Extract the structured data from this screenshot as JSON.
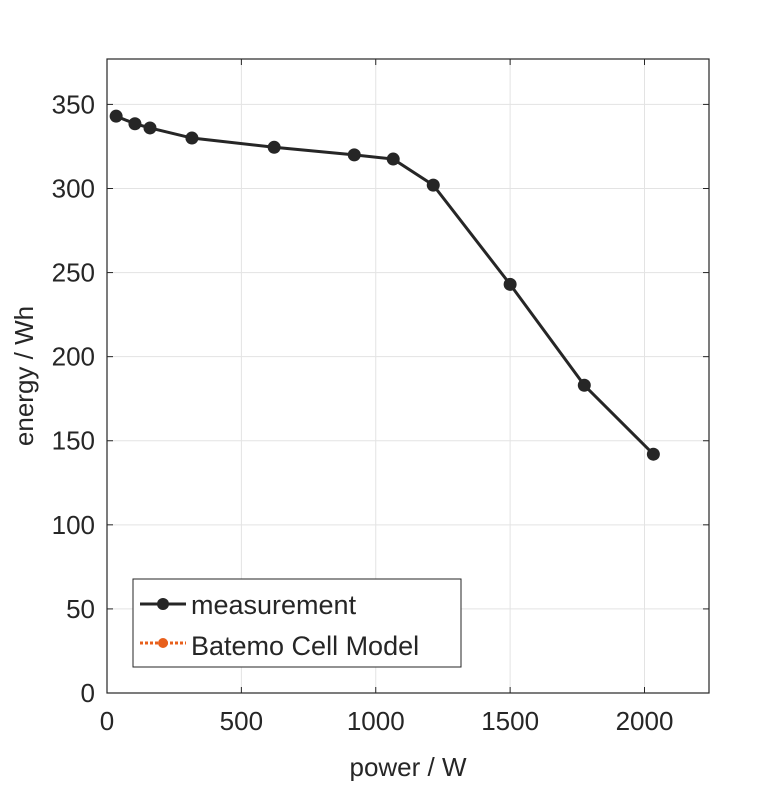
{
  "chart_data": {
    "type": "line",
    "title": "",
    "xlabel": "power / W",
    "ylabel": "energy / Wh",
    "xlim": [
      0,
      2240
    ],
    "ylim": [
      0,
      377
    ],
    "xticks": [
      0,
      500,
      1000,
      1500,
      2000
    ],
    "yticks": [
      0,
      50,
      100,
      150,
      200,
      250,
      300,
      350
    ],
    "xtick_labels": [
      "0",
      "500",
      "1000",
      "1500",
      "2000"
    ],
    "ytick_labels": [
      "0",
      "50",
      "100",
      "150",
      "200",
      "250",
      "300",
      "350"
    ],
    "grid": true,
    "legend_position": "bottom-left",
    "series": [
      {
        "name": "measurement",
        "color": "#262626",
        "line_style": "solid",
        "marker": "circle",
        "x": [
          34,
          104,
          160,
          316,
          622,
          920,
          1065,
          1214,
          1500,
          1776,
          2033
        ],
        "y": [
          343,
          338.5,
          336,
          330,
          324.5,
          320,
          317.5,
          302,
          243,
          183,
          142
        ]
      },
      {
        "name": "Batemo Cell Model",
        "color": "#E8601C",
        "line_style": "dotted",
        "marker": "circle",
        "x": [],
        "y": []
      }
    ]
  }
}
